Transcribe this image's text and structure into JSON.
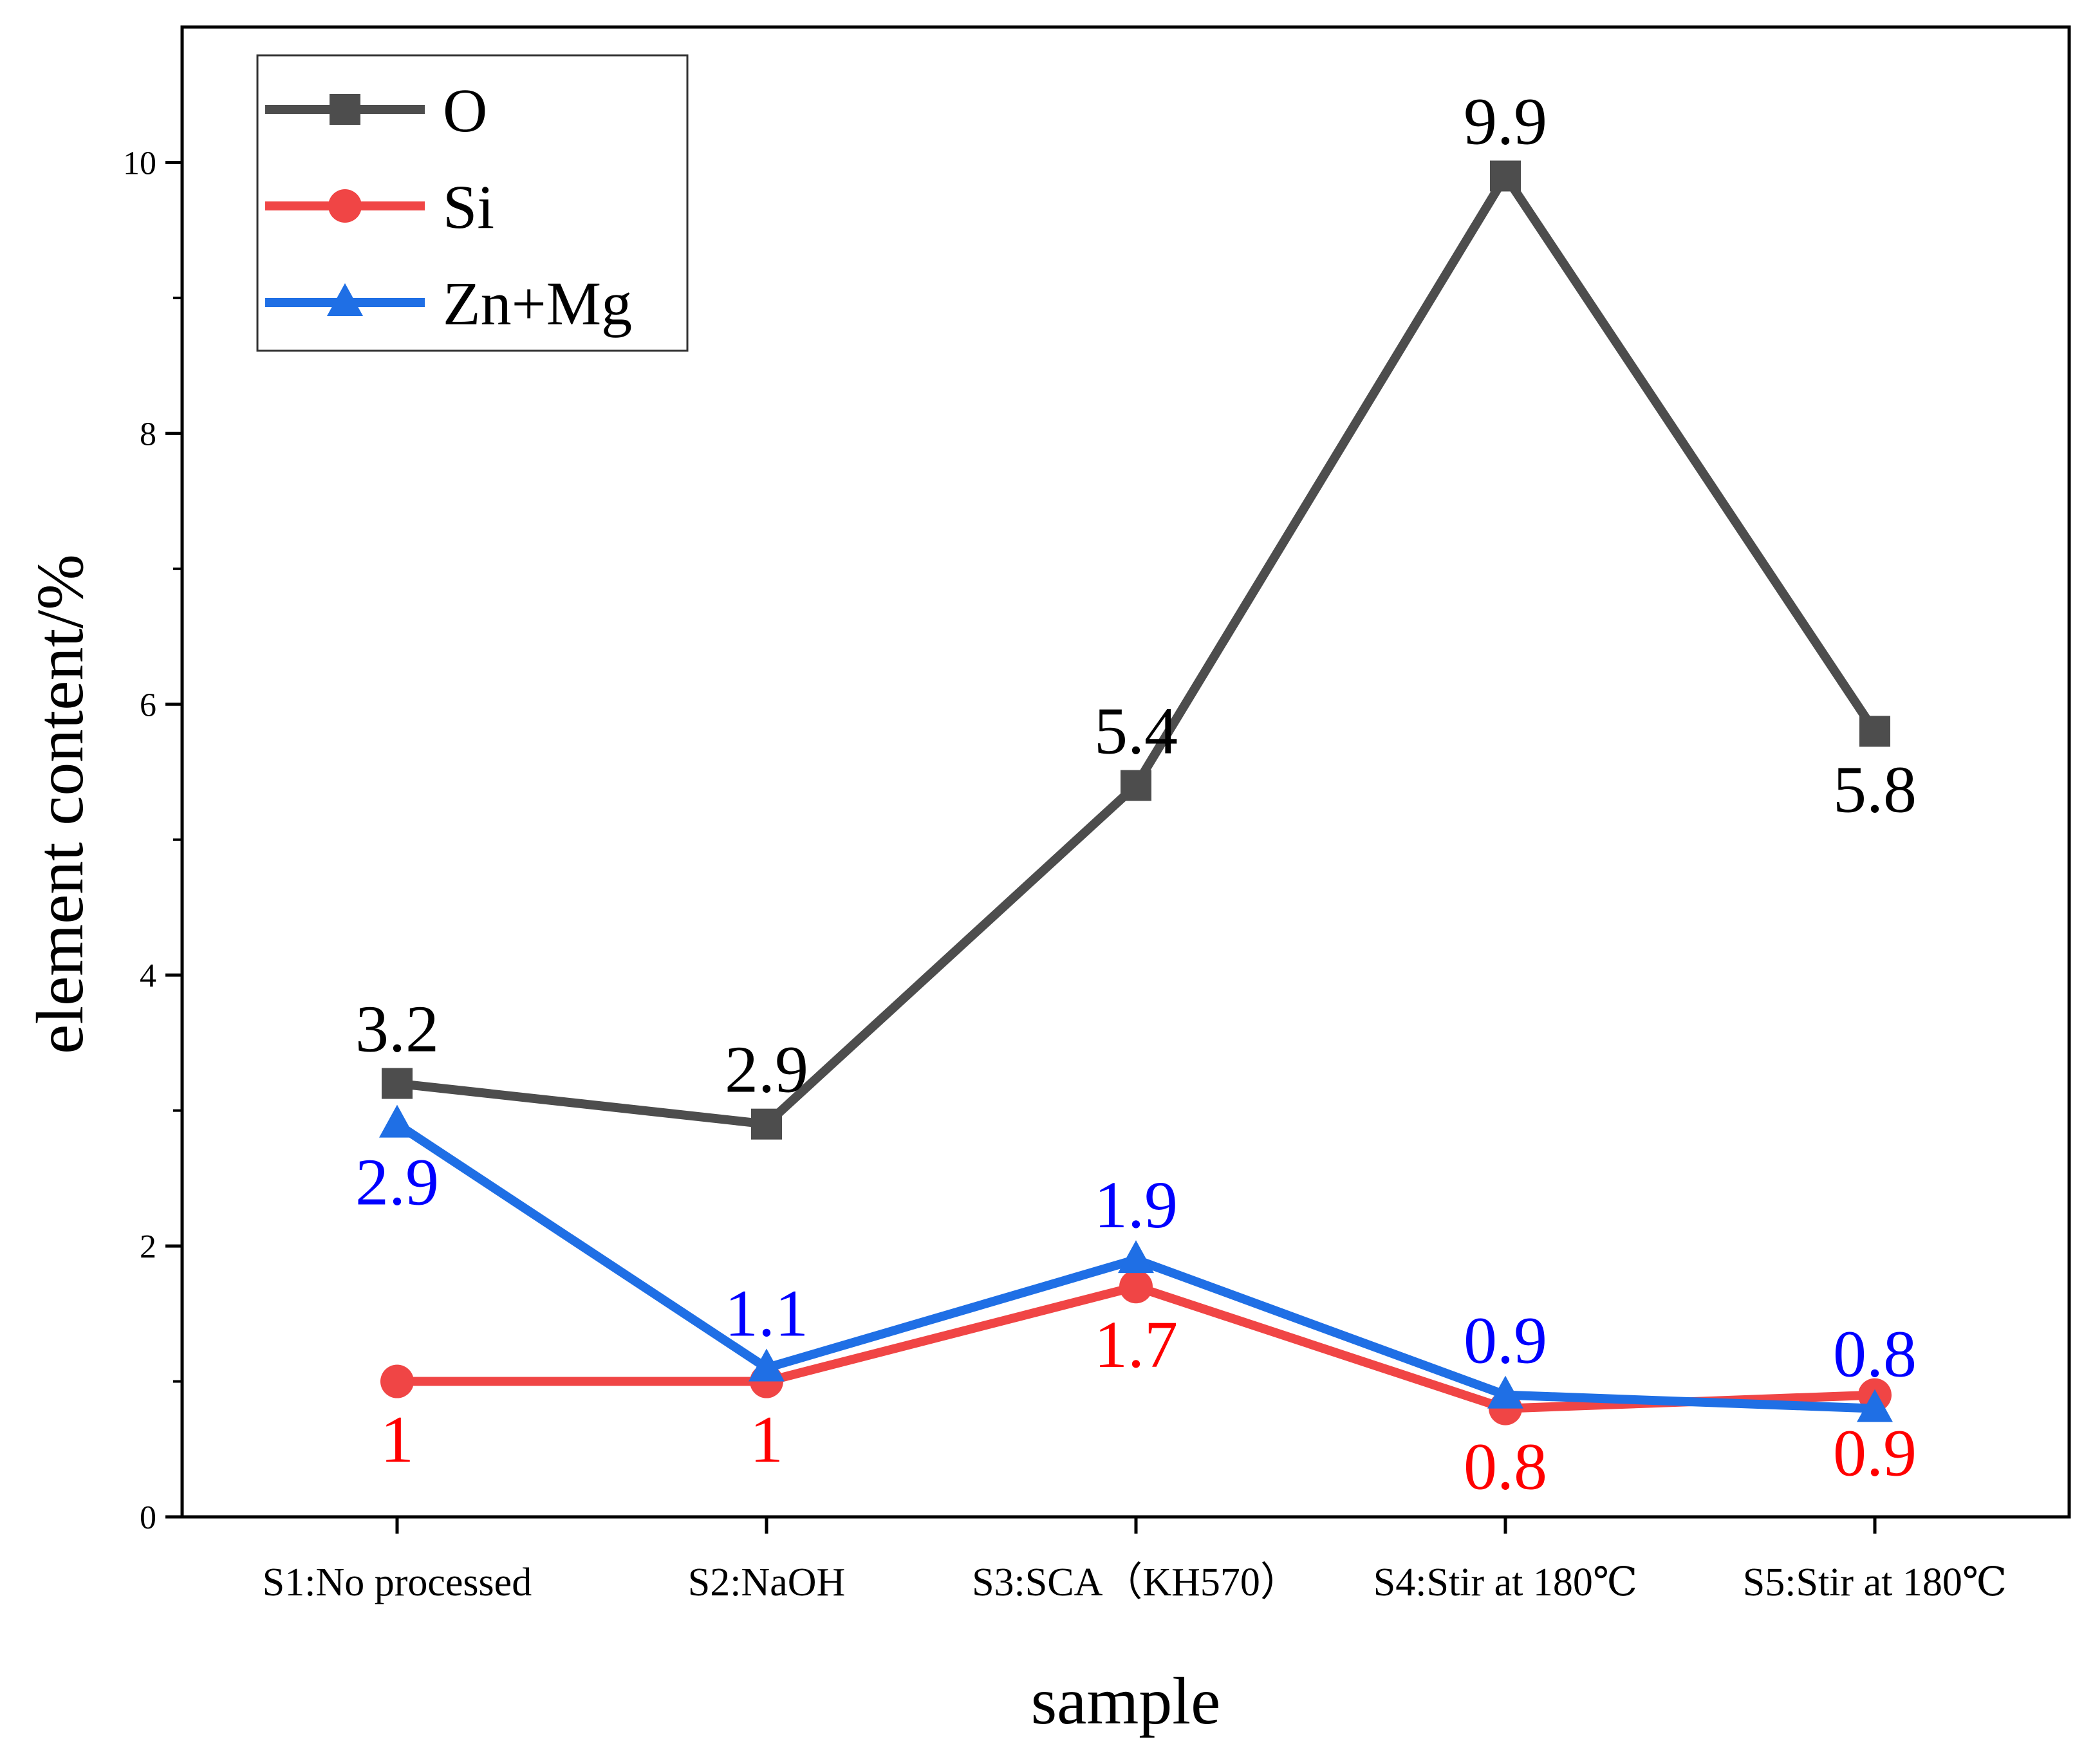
{
  "chart_data": {
    "type": "line",
    "title": "",
    "xlabel": "sample",
    "ylabel": "element content/%",
    "categories": [
      "S1:No processed",
      "S2:NaOH",
      "S3:SCA（KH570）",
      "S4:Stir at 180℃",
      "S5:Stir at 180℃"
    ],
    "ylim": [
      0,
      11
    ],
    "yticks": [
      0,
      2,
      4,
      6,
      8,
      10
    ],
    "grid": false,
    "legend_position": "top-left",
    "series": [
      {
        "name": "O",
        "color": "#4d4d4d",
        "marker": "square",
        "values": [
          3.2,
          2.9,
          5.4,
          9.9,
          5.8
        ],
        "labels": [
          "3.2",
          "2.9",
          "5.4",
          "9.9",
          "5.8"
        ],
        "label_color": "#000000",
        "label_positions": [
          "above",
          "above",
          "above",
          "above",
          "below"
        ]
      },
      {
        "name": "Si",
        "color": "#f04545",
        "marker": "circle",
        "values": [
          1.0,
          1.0,
          1.7,
          0.8,
          0.9
        ],
        "labels": [
          "1",
          "1",
          "1.7",
          "0.8",
          "0.9"
        ],
        "label_color": "#ff0000",
        "label_positions": [
          "below",
          "below",
          "below",
          "below",
          "below"
        ]
      },
      {
        "name": "Zn+Mg",
        "color": "#1f6fe5",
        "marker": "triangle",
        "values": [
          2.9,
          1.1,
          1.9,
          0.9,
          0.8
        ],
        "labels": [
          "2.9",
          "1.1",
          "1.9",
          "0.9",
          "0.8"
        ],
        "label_color": "#0000ff",
        "label_positions": [
          "below",
          "above",
          "above",
          "above",
          "above"
        ]
      }
    ]
  }
}
